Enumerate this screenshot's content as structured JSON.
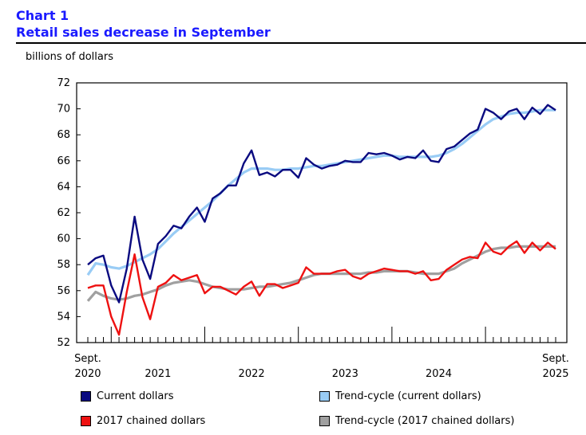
{
  "header": {
    "chart_number": "Chart 1",
    "title": "Retail sales decrease in September",
    "unit": "billions of dollars"
  },
  "colors": {
    "current": "#0a0a80",
    "trend_current": "#99ccf5",
    "chained": "#ee1111",
    "trend_chained": "#a0a0a0",
    "title": "#1a1aff"
  },
  "chart_data": {
    "type": "line",
    "title": "Retail sales decrease in September",
    "ylabel": "billions of dollars",
    "ylim": [
      52,
      72
    ],
    "yticks": [
      52,
      54,
      56,
      58,
      60,
      62,
      64,
      66,
      68,
      70,
      72
    ],
    "x_start": "2020-09",
    "x_end": "2025-09",
    "x_labels": [
      {
        "month": "2020-09",
        "line1": "Sept.",
        "line2": "2020"
      },
      {
        "month": "2021-06",
        "line1": "",
        "line2": "2021"
      },
      {
        "month": "2022-06",
        "line1": "",
        "line2": "2022"
      },
      {
        "month": "2023-06",
        "line1": "",
        "line2": "2023"
      },
      {
        "month": "2024-06",
        "line1": "",
        "line2": "2024"
      },
      {
        "month": "2025-09",
        "line1": "Sept.",
        "line2": "2025"
      }
    ],
    "series": [
      {
        "name": "Current dollars",
        "values": [
          58.0,
          58.5,
          58.7,
          56.4,
          55.1,
          57.7,
          61.7,
          58.4,
          56.9,
          59.6,
          60.2,
          61.0,
          60.8,
          61.7,
          62.4,
          61.3,
          63.1,
          63.5,
          64.1,
          64.1,
          65.8,
          66.8,
          64.9,
          65.1,
          64.8,
          65.3,
          65.3,
          64.7,
          66.2,
          65.7,
          65.4,
          65.6,
          65.7,
          66.0,
          65.9,
          65.9,
          66.6,
          66.5,
          66.6,
          66.4,
          66.1,
          66.3,
          66.2,
          66.8,
          66.0,
          65.9,
          66.9,
          67.1,
          67.6,
          68.1,
          68.4,
          70.0,
          69.7,
          69.2,
          69.8,
          70.0,
          69.2,
          70.1,
          69.6,
          70.3,
          69.9
        ]
      },
      {
        "name": "Trend-cycle (current dollars)",
        "values": [
          57.2,
          58.1,
          58.0,
          57.8,
          57.7,
          57.9,
          58.2,
          58.5,
          58.8,
          59.2,
          59.8,
          60.4,
          60.9,
          61.4,
          61.9,
          62.4,
          62.9,
          63.5,
          64.1,
          64.6,
          65.1,
          65.4,
          65.4,
          65.4,
          65.3,
          65.3,
          65.4,
          65.4,
          65.5,
          65.6,
          65.6,
          65.7,
          65.8,
          65.9,
          66.0,
          66.1,
          66.2,
          66.3,
          66.4,
          66.4,
          66.3,
          66.3,
          66.3,
          66.3,
          66.3,
          66.4,
          66.6,
          66.9,
          67.3,
          67.8,
          68.3,
          68.8,
          69.2,
          69.4,
          69.6,
          69.7,
          69.7,
          69.8,
          69.9,
          69.9,
          69.9
        ]
      },
      {
        "name": "2017 chained dollars",
        "values": [
          56.2,
          56.4,
          56.4,
          54.0,
          52.6,
          55.9,
          58.8,
          55.5,
          53.8,
          56.3,
          56.6,
          57.2,
          56.8,
          57.0,
          57.2,
          55.8,
          56.3,
          56.3,
          56.0,
          55.7,
          56.3,
          56.7,
          55.6,
          56.5,
          56.5,
          56.2,
          56.4,
          56.6,
          57.8,
          57.3,
          57.3,
          57.3,
          57.5,
          57.6,
          57.1,
          56.9,
          57.3,
          57.5,
          57.7,
          57.6,
          57.5,
          57.5,
          57.3,
          57.5,
          56.8,
          56.9,
          57.6,
          58.0,
          58.4,
          58.6,
          58.5,
          59.7,
          59.0,
          58.8,
          59.4,
          59.8,
          58.9,
          59.7,
          59.1,
          59.7,
          59.2
        ]
      },
      {
        "name": "Trend-cycle (2017 chained dollars)",
        "values": [
          55.2,
          55.9,
          55.6,
          55.4,
          55.3,
          55.4,
          55.6,
          55.7,
          55.9,
          56.1,
          56.4,
          56.6,
          56.7,
          56.8,
          56.7,
          56.5,
          56.3,
          56.2,
          56.1,
          56.1,
          56.1,
          56.2,
          56.3,
          56.3,
          56.4,
          56.5,
          56.6,
          56.8,
          57.0,
          57.2,
          57.3,
          57.3,
          57.3,
          57.3,
          57.3,
          57.3,
          57.4,
          57.4,
          57.5,
          57.5,
          57.5,
          57.5,
          57.4,
          57.3,
          57.3,
          57.3,
          57.5,
          57.7,
          58.1,
          58.4,
          58.7,
          59.0,
          59.2,
          59.3,
          59.3,
          59.4,
          59.4,
          59.4,
          59.4,
          59.4,
          59.4
        ]
      }
    ],
    "legend": [
      {
        "label": "Current dollars",
        "color": "#0a0a80"
      },
      {
        "label": "Trend-cycle (current dollars)",
        "color": "#99ccf5"
      },
      {
        "label": "2017 chained dollars",
        "color": "#ee1111"
      },
      {
        "label": "Trend-cycle (2017 chained dollars)",
        "color": "#a0a0a0"
      }
    ],
    "legend_position": "bottom",
    "grid": false
  }
}
